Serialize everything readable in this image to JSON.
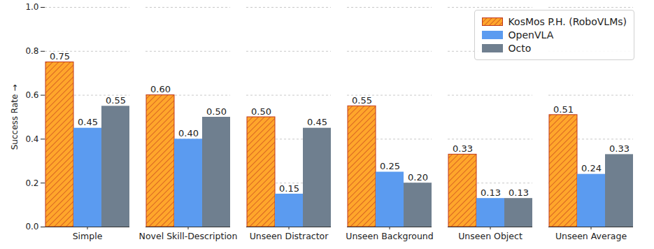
{
  "chart_data": {
    "type": "bar",
    "categories": [
      "Simple",
      "Novel Skill-Description",
      "Unseen Distractor",
      "Unseen Background",
      "Unseen Object",
      "Unseen Average"
    ],
    "series": [
      {
        "name": "KosMos P.H. (RoboVLMs)",
        "color": "#ffa62b",
        "values": [
          0.75,
          0.6,
          0.5,
          0.55,
          0.33,
          0.51
        ],
        "value_labels": [
          "0.75",
          "0.60",
          "0.50",
          "0.55",
          "0.33",
          "0.51"
        ]
      },
      {
        "name": "OpenVLA",
        "color": "#5b9bf0",
        "values": [
          0.45,
          0.4,
          0.15,
          0.25,
          0.13,
          0.24
        ],
        "value_labels": [
          "0.45",
          "0.40",
          "0.15",
          "0.25",
          "0.13",
          "0.24"
        ]
      },
      {
        "name": "Octo",
        "color": "#6f7f8f",
        "values": [
          0.55,
          0.5,
          0.45,
          0.2,
          0.13,
          0.33
        ],
        "value_labels": [
          "0.55",
          "0.50",
          "0.45",
          "0.20",
          "0.13",
          "0.33"
        ]
      }
    ],
    "y_label": "Success Rate",
    "ylim": [
      0,
      1
    ],
    "yticks": [
      {
        "value": 0,
        "label": "0.0"
      },
      {
        "value": 0.2,
        "label": "0.2"
      },
      {
        "value": 0.4,
        "label": "0.4"
      },
      {
        "value": 0.6,
        "label": "0.6"
      },
      {
        "value": 0.8,
        "label": "0.8"
      },
      {
        "value": 1,
        "label": "1.0"
      }
    ],
    "grid": true,
    "legend": "upper right",
    "data_labels": true
  }
}
